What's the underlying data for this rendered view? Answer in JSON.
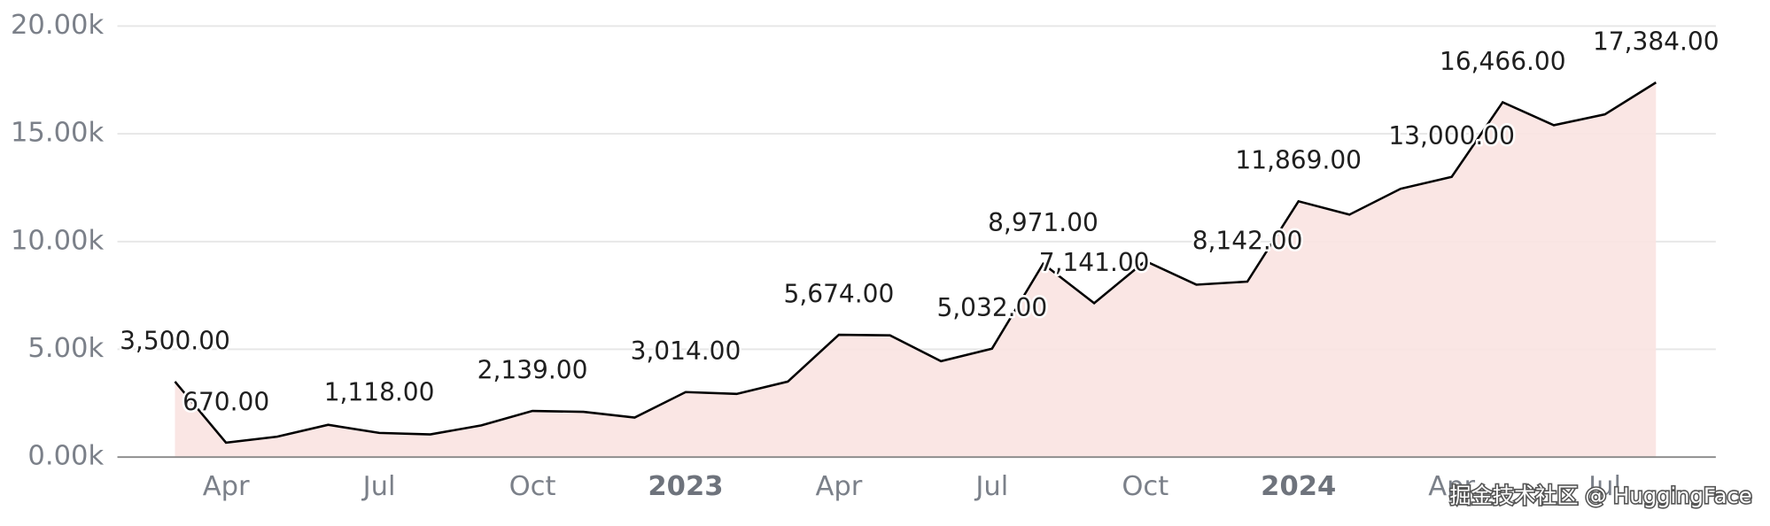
{
  "chart_data": {
    "type": "area",
    "categories": [
      null,
      "Apr",
      null,
      null,
      "Jul",
      null,
      null,
      "Oct",
      null,
      null,
      "2023",
      null,
      null,
      "Apr",
      null,
      null,
      "Jul",
      null,
      null,
      "Oct",
      null,
      null,
      "2024",
      null,
      null,
      "Apr",
      null,
      null,
      "Jul",
      null
    ],
    "bold_categories": [
      "2023",
      "2024"
    ],
    "series": [
      {
        "name": "value",
        "color": "#000000",
        "fill": "#f9e3e1",
        "values": [
          3500,
          670,
          950,
          1500,
          1118,
          1050,
          1470,
          2139,
          2100,
          1830,
          3014,
          2930,
          3500,
          5674,
          5650,
          4450,
          5032,
          8971,
          7141,
          9100,
          8000,
          8142,
          11869,
          11250,
          12450,
          13000,
          16466,
          15400,
          15900,
          17384
        ],
        "value_labels": [
          "3,500.00",
          "670.00",
          null,
          null,
          "1,118.00",
          null,
          null,
          "2,139.00",
          null,
          null,
          "3,014.00",
          null,
          null,
          "5,674.00",
          null,
          null,
          "5,032.00",
          "8,971.00",
          "7,141.00",
          null,
          null,
          "8,142.00",
          "11,869.00",
          null,
          null,
          "13,000.00",
          "16,466.00",
          null,
          null,
          "17,384.00"
        ]
      }
    ],
    "ylim": [
      0,
      20000
    ],
    "yticks": [
      {
        "value": 0,
        "label": "0.00k"
      },
      {
        "value": 5000,
        "label": "5.00k"
      },
      {
        "value": 10000,
        "label": "10.00k"
      },
      {
        "value": 15000,
        "label": "15.00k"
      },
      {
        "value": 20000,
        "label": "20.00k"
      }
    ],
    "grid": true
  },
  "watermark": "掘金技术社区 @ HuggingFace"
}
